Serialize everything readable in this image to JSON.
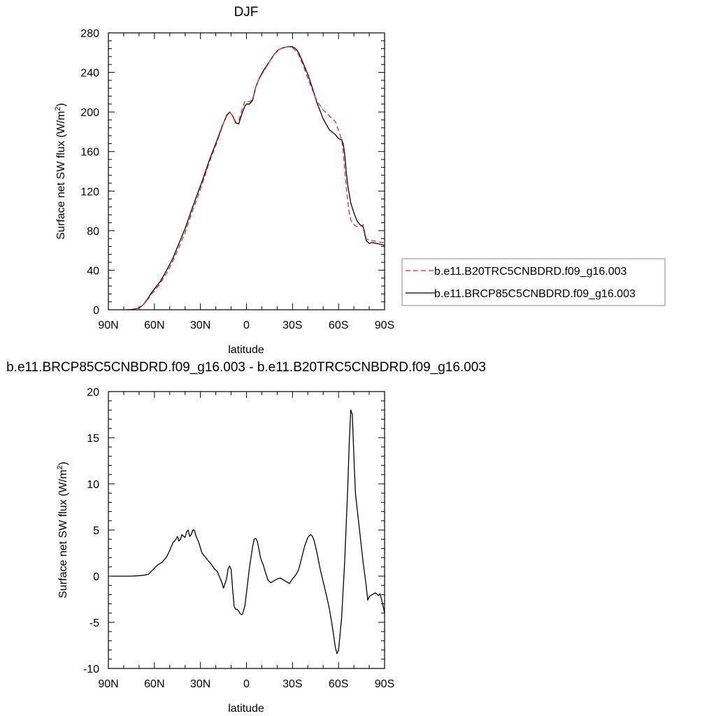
{
  "chart_data": [
    {
      "type": "line",
      "title": "DJF",
      "xlabel": "latitude",
      "ylabel": "Surface net SW flux (W/m²)",
      "ylabel_base": "Surface net SW flux (W/m",
      "ylabel_sup": "2",
      "ylabel_tail": ")",
      "xlim": [
        90,
        -90
      ],
      "ylim": [
        0,
        280
      ],
      "x_ticks": [
        90,
        60,
        30,
        0,
        -30,
        -60,
        -90
      ],
      "x_tick_labels": [
        "90N",
        "60N",
        "30N",
        "0",
        "30S",
        "60S",
        "90S"
      ],
      "y_ticks": [
        0,
        40,
        80,
        120,
        160,
        200,
        240,
        280
      ],
      "y_tick_labels": [
        "0",
        "40",
        "80",
        "120",
        "160",
        "200",
        "240",
        "280"
      ],
      "grid": false,
      "legend_position": "right",
      "series": [
        {
          "name": "b.e11.B20TRC5CNBDRD.f09_g16.003",
          "color": "#e8262c",
          "dash": "dashed",
          "x": [
            78,
            75,
            72,
            70,
            68,
            66,
            64,
            62,
            60,
            56,
            52,
            48,
            44,
            40,
            36,
            32,
            28,
            24,
            20,
            16,
            13,
            11,
            9,
            7,
            5,
            3,
            1,
            0,
            -2,
            -4,
            -6,
            -8,
            -10,
            -12,
            -15,
            -18,
            -21,
            -24,
            -27,
            -30,
            -32,
            -34,
            -37,
            -40,
            -43,
            -46,
            -50,
            -54,
            -58,
            -60,
            -62,
            -63,
            -64,
            -65,
            -66,
            -67,
            -68,
            -70,
            -72,
            -74,
            -76,
            -78,
            -80,
            -82,
            -85,
            -88,
            -90
          ],
          "y": [
            0,
            0.3,
            1,
            2,
            4,
            7.5,
            11,
            15.5,
            19,
            27,
            37,
            49,
            63,
            78,
            96,
            113,
            131,
            150,
            166,
            184,
            197,
            200,
            196,
            190,
            191,
            202,
            211,
            211,
            210,
            213,
            225,
            233,
            238,
            243,
            251,
            258,
            263,
            265,
            266,
            265,
            262,
            258,
            247,
            234,
            222,
            211,
            202,
            196,
            190,
            181,
            172,
            160,
            142,
            125,
            110,
            98,
            91,
            86,
            84,
            84,
            86,
            72,
            70,
            70,
            69,
            68,
            68
          ]
        },
        {
          "name": "b.e11.BRCP85C5CNBDRD.f09_g16.003",
          "color": "#000000",
          "dash": "solid",
          "x": [
            78,
            75,
            72,
            70,
            68,
            66,
            64,
            62,
            60,
            56,
            52,
            48,
            44,
            40,
            36,
            32,
            28,
            24,
            20,
            16,
            13,
            11,
            9,
            7,
            5,
            3,
            1,
            0,
            -2,
            -4,
            -6,
            -8,
            -10,
            -12,
            -15,
            -18,
            -21,
            -24,
            -27,
            -30,
            -32,
            -34,
            -37,
            -40,
            -43,
            -46,
            -50,
            -54,
            -58,
            -60,
            -62,
            -63,
            -64,
            -65,
            -66,
            -67,
            -68,
            -70,
            -72,
            -74,
            -76,
            -78,
            -80,
            -82,
            -85,
            -88,
            -90
          ],
          "y": [
            0,
            0.3,
            1,
            2,
            4,
            7.5,
            12,
            17,
            21,
            29,
            40,
            52,
            67,
            82,
            100,
            117,
            134,
            152,
            168,
            185,
            196,
            200,
            196,
            189,
            188,
            198,
            206,
            208,
            208,
            212,
            225,
            233,
            239,
            244,
            251,
            258,
            263,
            265,
            266,
            266,
            264,
            260,
            249,
            238,
            224,
            209,
            193,
            182,
            177,
            173,
            172,
            168,
            158,
            140,
            126,
            117,
            108,
            98,
            90,
            86,
            84,
            70,
            67,
            68,
            67,
            66,
            65
          ]
        }
      ]
    },
    {
      "type": "line",
      "title": "b.e11.BRCP85C5CNBDRD.f09_g16.003 - b.e11.B20TRC5CNBDRD.f09_g16.003",
      "xlabel": "latitude",
      "ylabel": "Surface net SW flux (W/m²)",
      "ylabel_base": "Surface net SW flux (W/m",
      "ylabel_sup": "2",
      "ylabel_tail": ")",
      "xlim": [
        90,
        -90
      ],
      "ylim": [
        -10,
        20
      ],
      "x_ticks": [
        90,
        60,
        30,
        0,
        -30,
        -60,
        -90
      ],
      "x_tick_labels": [
        "90N",
        "60N",
        "30N",
        "0",
        "30S",
        "60S",
        "90S"
      ],
      "y_ticks": [
        -10,
        -5,
        0,
        5,
        10,
        15,
        20
      ],
      "y_tick_labels": [
        "-10",
        "-5",
        "0",
        "5",
        "10",
        "15",
        "20"
      ],
      "grid": false,
      "series": [
        {
          "name": "",
          "color": "#000000",
          "dash": "solid",
          "x": [
            88,
            80,
            75,
            70,
            67,
            64,
            61,
            58,
            55,
            52,
            50,
            48,
            46,
            45,
            44,
            43,
            42,
            41,
            40,
            39,
            38,
            37,
            36,
            35,
            34,
            33,
            31,
            29,
            27,
            25,
            23,
            21,
            19,
            17,
            16,
            15,
            13,
            12,
            11,
            10,
            9,
            8,
            7,
            6,
            5,
            4,
            3,
            2,
            1,
            0,
            -1,
            -2,
            -4,
            -5,
            -6,
            -7,
            -8,
            -9,
            -10,
            -11,
            -12,
            -13,
            -14,
            -15,
            -16,
            -18,
            -20,
            -22,
            -24,
            -26,
            -28,
            -30,
            -32,
            -34,
            -36,
            -38,
            -40,
            -41,
            -42,
            -43,
            -44,
            -46,
            -48,
            -50,
            -52,
            -54,
            -56,
            -58,
            -59,
            -60,
            -62,
            -64,
            -66,
            -67,
            -68,
            -69,
            -70,
            -71,
            -72,
            -74,
            -76,
            -78,
            -79,
            -80,
            -82,
            -84,
            -86,
            -87,
            -88,
            -89,
            -90
          ],
          "y": [
            0,
            0,
            0,
            0.05,
            0.1,
            0.2,
            0.7,
            1.2,
            1.5,
            2.1,
            2.8,
            3.6,
            4.0,
            4.3,
            3.8,
            4.0,
            4.5,
            4.3,
            4.2,
            4.8,
            5.0,
            4.3,
            4.5,
            5.0,
            5.0,
            4.4,
            3.6,
            2.5,
            2.1,
            1.7,
            1.3,
            0.8,
            0.5,
            -0.3,
            -0.7,
            -1.3,
            -0.3,
            0.8,
            1.1,
            0.7,
            -1.5,
            -3.3,
            -3.6,
            -3.6,
            -3.8,
            -4.1,
            -4.2,
            -3.8,
            -3.2,
            -1.8,
            -0.4,
            1.0,
            3.2,
            4.0,
            4.1,
            3.8,
            3.0,
            2.1,
            1.6,
            1.2,
            0.6,
            0.1,
            -0.4,
            -0.6,
            -0.7,
            -0.5,
            -0.3,
            -0.2,
            -0.4,
            -0.6,
            -0.8,
            -0.3,
            0.1,
            0.7,
            2.0,
            3.3,
            4.2,
            4.4,
            4.5,
            4.3,
            3.9,
            2.5,
            0.8,
            -0.6,
            -2.0,
            -3.5,
            -5.5,
            -7.8,
            -8.4,
            -8.0,
            -4.5,
            1.5,
            9.5,
            14.5,
            18.0,
            17.5,
            13.0,
            9.0,
            7.5,
            4.5,
            1.5,
            -1.0,
            -2.6,
            -2.2,
            -2.0,
            -1.8,
            -2.1,
            -1.9,
            -2.5,
            -3.2,
            -4.0
          ]
        }
      ]
    }
  ]
}
